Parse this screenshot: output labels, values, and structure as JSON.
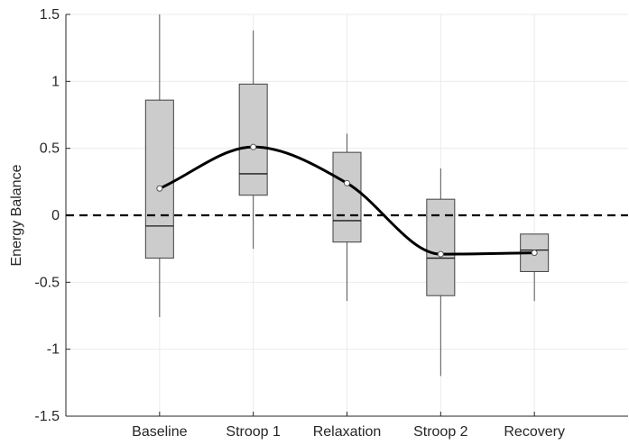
{
  "chart_data": {
    "type": "box",
    "ylabel": "Energy Balance",
    "xlabel": "",
    "title": "",
    "ylim": [
      -1.5,
      1.5
    ],
    "yticks": [
      -1.5,
      -1,
      -0.5,
      0,
      0.5,
      1,
      1.5
    ],
    "ytick_labels": [
      "-1.5",
      "-1",
      "-0.5",
      "0",
      "0.5",
      "1",
      "1.5"
    ],
    "categories": [
      "Baseline",
      "Stroop 1",
      "Relaxation",
      "Stroop 2",
      "Recovery"
    ],
    "boxes": [
      {
        "category": "Baseline",
        "whisker_low": -0.76,
        "q1": -0.32,
        "median": -0.08,
        "q3": 0.86,
        "whisker_high": 1.5,
        "mean": 0.2
      },
      {
        "category": "Stroop 1",
        "whisker_low": -0.25,
        "q1": 0.15,
        "median": 0.31,
        "q3": 0.98,
        "whisker_high": 1.38,
        "mean": 0.51
      },
      {
        "category": "Relaxation",
        "whisker_low": -0.64,
        "q1": -0.2,
        "median": -0.04,
        "q3": 0.47,
        "whisker_high": 0.61,
        "mean": 0.24
      },
      {
        "category": "Stroop 2",
        "whisker_low": -1.2,
        "q1": -0.6,
        "median": -0.32,
        "q3": 0.12,
        "whisker_high": 0.35,
        "mean": -0.29
      },
      {
        "category": "Recovery",
        "whisker_low": -0.64,
        "q1": -0.42,
        "median": -0.26,
        "q3": -0.14,
        "whisker_high": -0.14,
        "mean": -0.28
      }
    ],
    "reference_line": {
      "y": 0,
      "style": "dashed"
    },
    "mean_curve": {
      "style": "smooth",
      "color": "#000000"
    },
    "grid": true,
    "colors": {
      "box_fill": "#cccccc",
      "box_edge": "#404040",
      "grid": "#ebebeb",
      "axis": "#262626"
    }
  }
}
